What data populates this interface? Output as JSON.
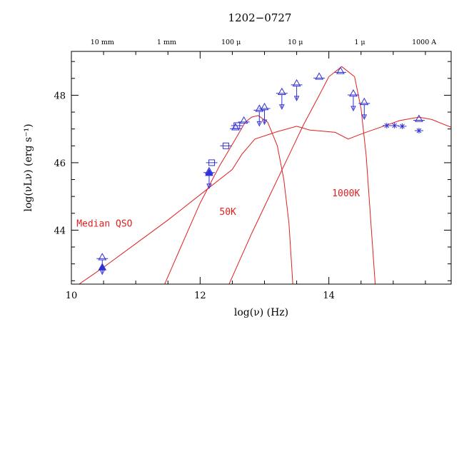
{
  "chart_data": {
    "type": "scatter",
    "title": "1202−0727",
    "xlabel": "log(ν)  (Hz)",
    "ylabel": "log(νLν)  (erg s⁻¹)",
    "xlim": [
      10,
      15.9
    ],
    "ylim": [
      42.4,
      49.3
    ],
    "x_ticks": [
      10,
      12,
      14
    ],
    "y_ticks": [
      44,
      46,
      48
    ],
    "top_axis_labels": [
      {
        "label": "10 mm",
        "x": 10.48
      },
      {
        "label": "1 mm",
        "x": 11.48
      },
      {
        "label": "100 μ",
        "x": 12.48
      },
      {
        "label": "10 μ",
        "x": 13.48
      },
      {
        "label": "1 μ",
        "x": 14.48
      },
      {
        "label": "1000 A",
        "x": 15.48
      }
    ],
    "colors": {
      "data": "#3030d8",
      "model": "#e02020",
      "axis": "#000000"
    },
    "models": [
      {
        "label": "Median QSO",
        "points": [
          [
            10.12,
            42.4
          ],
          [
            10.5,
            42.9
          ],
          [
            11,
            43.6
          ],
          [
            11.5,
            44.3
          ],
          [
            12,
            45.05
          ],
          [
            12.5,
            45.8
          ],
          [
            12.65,
            46.25
          ],
          [
            12.85,
            46.7
          ],
          [
            13.2,
            46.92
          ],
          [
            13.5,
            47.08
          ],
          [
            13.7,
            46.97
          ],
          [
            14.1,
            46.9
          ],
          [
            14.3,
            46.7
          ],
          [
            14.5,
            46.85
          ],
          [
            14.8,
            47.05
          ],
          [
            15.1,
            47.25
          ],
          [
            15.4,
            47.35
          ],
          [
            15.6,
            47.28
          ],
          [
            15.9,
            47.05
          ]
        ]
      },
      {
        "label": "50K",
        "points": [
          [
            11.45,
            42.4
          ],
          [
            11.7,
            43.5
          ],
          [
            12.0,
            44.8
          ],
          [
            12.3,
            45.9
          ],
          [
            12.55,
            46.7
          ],
          [
            12.7,
            47.2
          ],
          [
            12.8,
            47.35
          ],
          [
            12.9,
            47.4
          ],
          [
            13.05,
            47.2
          ],
          [
            13.2,
            46.5
          ],
          [
            13.3,
            45.5
          ],
          [
            13.38,
            44.2
          ],
          [
            13.44,
            42.4
          ]
        ]
      },
      {
        "label": "1000K",
        "points": [
          [
            12.45,
            42.4
          ],
          [
            12.8,
            43.9
          ],
          [
            13.1,
            45.1
          ],
          [
            13.4,
            46.3
          ],
          [
            13.6,
            47.1
          ],
          [
            13.85,
            48.0
          ],
          [
            14.0,
            48.55
          ],
          [
            14.2,
            48.85
          ],
          [
            14.4,
            48.55
          ],
          [
            14.5,
            47.6
          ],
          [
            14.58,
            46.2
          ],
          [
            14.65,
            44.3
          ],
          [
            14.72,
            42.4
          ]
        ]
      }
    ],
    "annotations": [
      {
        "text": "Median QSO",
        "x": 10.08,
        "y": 44.1
      },
      {
        "text": "50K",
        "x": 12.3,
        "y": 44.45
      },
      {
        "text": "1000K",
        "x": 14.05,
        "y": 45.0
      }
    ],
    "series": [
      {
        "name": "",
        "marker": "filled-triangle",
        "points": [
          {
            "x": 10.48,
            "y": 42.9
          },
          {
            "x": 12.14,
            "y": 45.7
          }
        ]
      },
      {
        "name": "",
        "marker": "open-triangle-upper-limit",
        "points": [
          {
            "x": 10.48,
            "y": 43.2
          },
          {
            "x": 12.14,
            "y": 45.75
          },
          {
            "x": 12.92,
            "y": 47.6
          },
          {
            "x": 13.0,
            "y": 47.65
          },
          {
            "x": 13.27,
            "y": 48.1
          },
          {
            "x": 13.5,
            "y": 48.35
          },
          {
            "x": 14.38,
            "y": 48.05
          },
          {
            "x": 14.55,
            "y": 47.8
          }
        ]
      },
      {
        "name": "",
        "marker": "open-triangle",
        "points": [
          {
            "x": 12.55,
            "y": 47.05
          },
          {
            "x": 12.68,
            "y": 47.25
          },
          {
            "x": 13.85,
            "y": 48.55
          },
          {
            "x": 14.18,
            "y": 48.72
          },
          {
            "x": 15.4,
            "y": 47.3
          }
        ]
      },
      {
        "name": "",
        "marker": "open-square",
        "points": [
          {
            "x": 12.18,
            "y": 46.0
          },
          {
            "x": 12.4,
            "y": 46.5
          },
          {
            "x": 12.57,
            "y": 47.1
          }
        ]
      },
      {
        "name": "",
        "marker": "cross-error",
        "points": [
          {
            "x": 14.9,
            "y": 47.1
          },
          {
            "x": 15.02,
            "y": 47.1
          },
          {
            "x": 15.14,
            "y": 47.08
          },
          {
            "x": 15.4,
            "y": 46.95
          }
        ]
      }
    ]
  }
}
